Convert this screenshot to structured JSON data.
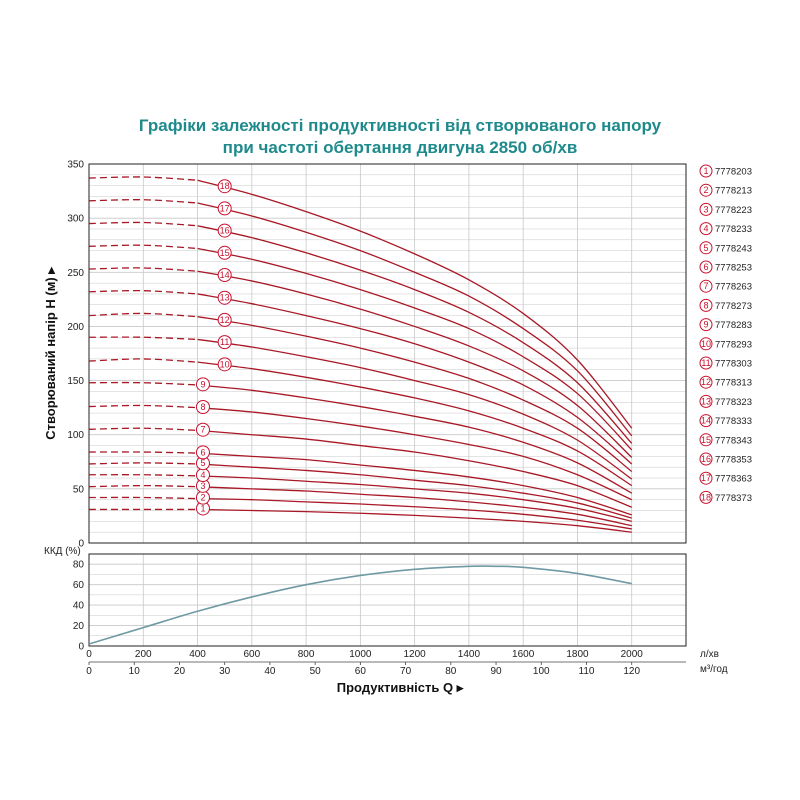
{
  "title_line1": "Графіки залежності продуктивності від створюваного напору",
  "title_line2": "при частоті обертання двигуна 2850 об/хв",
  "colors": {
    "title": "#1f8a8c",
    "curve": "#a81825",
    "badge": "#c8102e",
    "efficiency": "#6f9aa3",
    "grid": "#c8c8c8"
  },
  "chart_data": [
    {
      "type": "line",
      "title": "",
      "ylabel": "Створюваний напір H (м) ▸",
      "ylim": [
        0,
        350
      ],
      "yticks": [
        0,
        50,
        100,
        150,
        200,
        250,
        300,
        350
      ],
      "xlim": [
        0,
        2200
      ],
      "x_head_points_lpm": [
        0,
        200,
        400,
        600,
        800,
        1000,
        1200,
        1400,
        1600,
        1800,
        2000
      ],
      "grid": true,
      "legend_position": "right",
      "series": [
        {
          "name": "7778203",
          "badge": "1",
          "values": [
            31,
            31,
            31,
            30,
            29,
            27.5,
            25.5,
            23,
            20,
            16,
            10
          ]
        },
        {
          "name": "7778213",
          "badge": "2",
          "values": [
            42,
            42,
            41,
            40,
            38,
            36,
            33.5,
            30.5,
            26.5,
            21,
            13
          ]
        },
        {
          "name": "7778223",
          "badge": "3",
          "values": [
            52,
            53,
            52,
            50,
            48,
            45,
            42,
            38,
            33,
            26.5,
            16
          ]
        },
        {
          "name": "7778233",
          "badge": "4",
          "values": [
            63,
            63,
            62,
            60,
            57,
            54,
            50,
            46,
            40,
            32,
            20
          ]
        },
        {
          "name": "7778243",
          "badge": "5",
          "values": [
            73,
            74,
            73,
            70,
            67,
            63,
            58,
            53,
            46,
            37,
            23
          ]
        },
        {
          "name": "7778253",
          "badge": "6",
          "values": [
            84,
            84,
            83,
            80,
            77,
            72,
            67,
            61,
            53,
            42,
            26
          ]
        },
        {
          "name": "7778263",
          "badge": "7",
          "values": [
            105,
            106,
            104,
            100,
            96,
            90,
            84,
            76,
            66,
            53,
            33
          ]
        },
        {
          "name": "7778273",
          "badge": "8",
          "values": [
            126,
            127,
            125,
            121,
            115,
            108,
            100,
            91,
            80,
            63,
            40
          ]
        },
        {
          "name": "7778283",
          "badge": "9",
          "values": [
            148,
            148,
            146,
            141,
            134,
            126,
            117,
            107,
            93,
            74,
            46
          ]
        },
        {
          "name": "7778293",
          "badge": "10",
          "values": [
            168,
            170,
            167,
            161,
            153,
            144,
            134,
            122,
            106,
            85,
            53
          ]
        },
        {
          "name": "7778303",
          "badge": "11",
          "values": [
            190,
            190,
            188,
            181,
            172,
            162,
            150,
            137,
            119,
            95,
            59
          ]
        },
        {
          "name": "7778313",
          "badge": "12",
          "values": [
            210,
            212,
            209,
            201,
            191,
            180,
            167,
            152,
            132,
            106,
            66
          ]
        },
        {
          "name": "7778323",
          "badge": "13",
          "values": [
            232,
            233,
            230,
            221,
            210,
            198,
            184,
            167,
            146,
            116,
            73
          ]
        },
        {
          "name": "7778333",
          "badge": "14",
          "values": [
            253,
            254,
            251,
            242,
            230,
            216,
            200,
            182,
            159,
            127,
            79
          ]
        },
        {
          "name": "7778343",
          "badge": "15",
          "values": [
            274,
            275,
            272,
            262,
            249,
            234,
            217,
            198,
            172,
            138,
            86
          ]
        },
        {
          "name": "7778353",
          "badge": "16",
          "values": [
            295,
            296,
            293,
            282,
            268,
            252,
            234,
            213,
            185,
            148,
            92
          ]
        },
        {
          "name": "7778363",
          "badge": "17",
          "values": [
            316,
            317,
            314,
            302,
            287,
            270,
            250,
            228,
            198,
            159,
            99
          ]
        },
        {
          "name": "7778373",
          "badge": "18",
          "values": [
            337,
            338,
            335,
            322,
            306,
            288,
            267,
            243,
            212,
            169,
            106
          ]
        }
      ]
    },
    {
      "type": "line",
      "title": "",
      "ylabel": "ККД (%)",
      "ylim": [
        0,
        90
      ],
      "yticks": [
        0,
        20,
        40,
        60,
        80
      ],
      "xlim": [
        0,
        2200
      ],
      "xlabel": "Продуктивність  Q ▸",
      "x_ticks_lpm": [
        0,
        200,
        400,
        600,
        800,
        1000,
        1200,
        1400,
        1600,
        1800,
        2000
      ],
      "x_unit_lpm": "л/хв",
      "x_ticks_m3h": [
        0,
        10,
        20,
        30,
        40,
        50,
        60,
        70,
        80,
        90,
        100,
        110,
        120
      ],
      "x_unit_m3h": "м³/год",
      "grid": true,
      "series": [
        {
          "x": [
            0,
            200,
            400,
            600,
            800,
            1000,
            1200,
            1400,
            1500,
            1600,
            1800,
            2000
          ],
          "values": [
            2,
            18,
            34,
            48,
            60,
            69,
            75,
            78,
            78,
            77,
            71,
            61
          ]
        }
      ]
    }
  ]
}
